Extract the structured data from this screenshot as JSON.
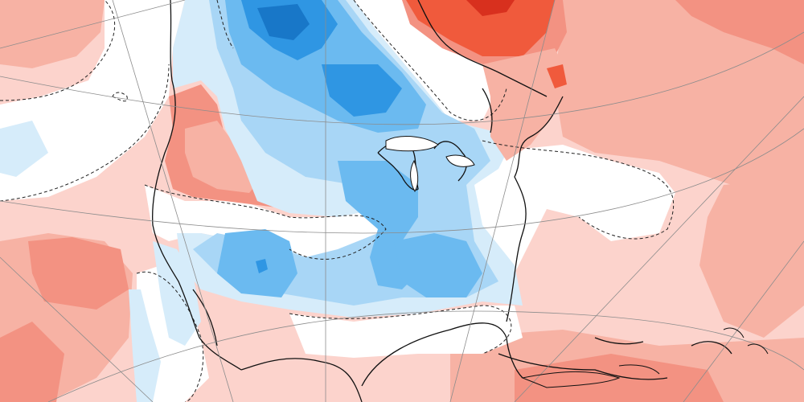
{
  "map": {
    "kind": "temperature-anomaly",
    "region": "North America",
    "projection": "polar-stereographic",
    "colors": {
      "background": "#ffffff",
      "warm_light": "#fcd3cc",
      "warm_medium": "#f7b2a4",
      "warm_strong": "#f39282",
      "warm_hot": "#f05a3c",
      "warm_extreme": "#d8301e",
      "cool_light": "#d6ecfa",
      "cool_medium": "#a8d6f6",
      "cool_strong": "#6bbaf0",
      "cool_deep": "#2f96e3",
      "cool_deepest": "#1877c8",
      "coastline": "#111111",
      "graticule": "#8c8c8c",
      "zero_contour": "#222222"
    },
    "layers": [
      "shaded-anomaly",
      "zero-contour-dashed",
      "coastlines",
      "graticule"
    ]
  }
}
